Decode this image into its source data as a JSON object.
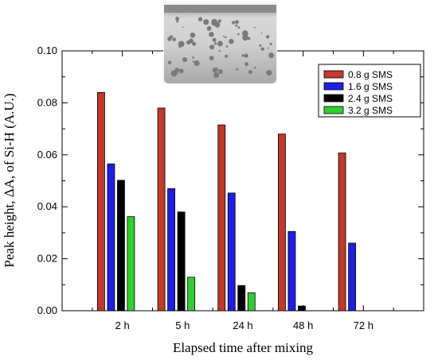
{
  "chart_data": {
    "type": "bar",
    "title": "",
    "xlabel": "Elapsed time after mixing",
    "ylabel": "Peak height, ΔA, of Si-H (A.U.)",
    "categories": [
      "2 h",
      "5 h",
      "24 h",
      "48 h",
      "72 h"
    ],
    "ylim": [
      0,
      0.1
    ],
    "yticks": [
      "0.00",
      "0.02",
      "0.04",
      "0.06",
      "0.08",
      "0.10"
    ],
    "legend_position": "top-right",
    "grid": false,
    "inset_image": "foam-sample-in-glass-jar",
    "series": [
      {
        "name": "0.8 g SMS",
        "color": "#c0392b",
        "values": [
          0.084,
          0.078,
          0.0715,
          0.068,
          0.0607
        ]
      },
      {
        "name": "1.6 g SMS",
        "color": "#1f1fe0",
        "values": [
          0.0565,
          0.047,
          0.0453,
          0.0305,
          0.026
        ]
      },
      {
        "name": "2.4 g SMS",
        "color": "#000000",
        "values": [
          0.0502,
          0.038,
          0.0097,
          0.0018,
          0
        ]
      },
      {
        "name": "3.2 g SMS",
        "color": "#33cc33",
        "values": [
          0.0362,
          0.0129,
          0.0069,
          0,
          0
        ]
      }
    ]
  }
}
